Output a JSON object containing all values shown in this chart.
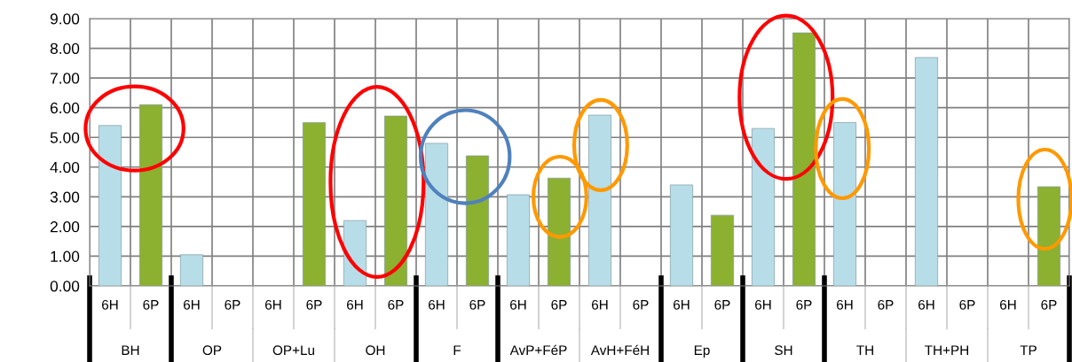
{
  "chart_data": {
    "type": "bar",
    "categories": [
      "BH",
      "OP",
      "OP+Lu",
      "OH",
      "F",
      "AvP+FéP",
      "AvH+FéH",
      "Ep",
      "SH",
      "TH",
      "TH+PH",
      "TP"
    ],
    "series": [
      {
        "name": "6H",
        "color": "#b7dde8",
        "values": [
          5.4,
          1.05,
          null,
          2.2,
          4.8,
          3.07,
          5.75,
          3.4,
          5.3,
          5.5,
          7.69,
          null
        ]
      },
      {
        "name": "6P",
        "color": "#8cb030",
        "values": [
          6.1,
          null,
          5.5,
          5.72,
          4.38,
          3.63,
          null,
          2.38,
          8.52,
          null,
          null,
          3.34
        ]
      }
    ],
    "ylim": [
      0,
      9
    ],
    "yticks": [
      {
        "value": 0,
        "label": "0.00"
      },
      {
        "value": 1,
        "label": "1.00"
      },
      {
        "value": 2,
        "label": "2.00"
      },
      {
        "value": 3,
        "label": "3.00"
      },
      {
        "value": 4,
        "label": "4.00"
      },
      {
        "value": 5,
        "label": "5.00"
      },
      {
        "value": 6,
        "label": "6.00"
      },
      {
        "value": 7,
        "label": "7.00"
      },
      {
        "value": 8,
        "label": "8.00"
      },
      {
        "value": 9,
        "label": "9.00"
      }
    ],
    "grid": true,
    "legend": false
  }
}
